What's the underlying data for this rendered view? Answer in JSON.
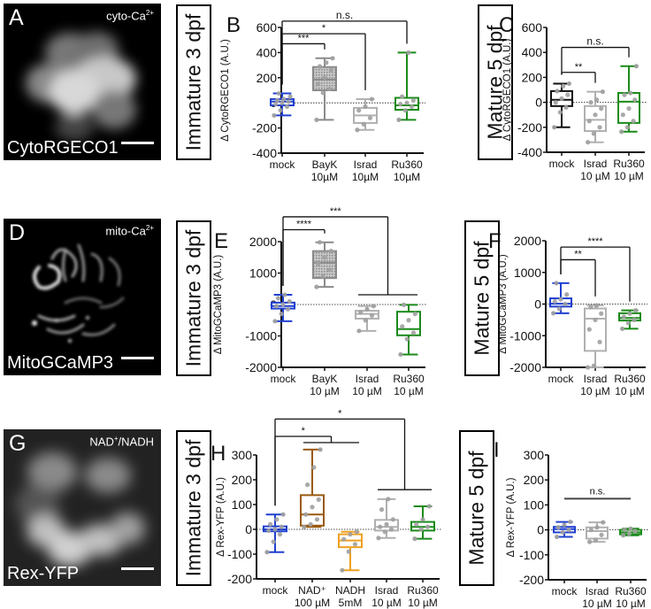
{
  "images": [
    {
      "letter": "A",
      "sub": "cyto-Ca2+",
      "name": "CytoRGECO1",
      "style": "blob"
    },
    {
      "letter": "D",
      "sub": "mito-Ca2+",
      "name": "MitoGCaMP3",
      "style": "mito"
    },
    {
      "letter": "G",
      "sub": "NAD+/NADH",
      "name": "Rex-YFP",
      "style": "blob2"
    }
  ],
  "stage_labels": {
    "immature": "Immature 3 dpf",
    "mature": "Mature 5 dpf"
  },
  "colors": {
    "mock": "#2040d0",
    "bayk": "#8a8a8a",
    "israd": "#b0b0b0",
    "ru360": "#1a8a1a",
    "nad": "#9a5a10",
    "nadh": "#f0a020",
    "mature_mock_C": "#111111",
    "points": "#a0a0a0"
  },
  "chart_data": [
    {
      "panel": "B",
      "type": "box",
      "ylabel": "Δ CytoRGECO1 (A.U.)",
      "ylim": [
        -400,
        600
      ],
      "yticks": [
        -400,
        -200,
        0,
        200,
        400,
        600
      ],
      "categories": [
        [
          "mock"
        ],
        [
          "BayK",
          "10µM"
        ],
        [
          "Israd",
          "10µM"
        ],
        [
          "Ru360",
          "10µM"
        ]
      ],
      "boxes": [
        {
          "color": "mock",
          "min": -100,
          "q1": -20,
          "median": 10,
          "q3": 30,
          "max": 75,
          "hatch": false
        },
        {
          "color": "bayk",
          "min": -135,
          "q1": 100,
          "median": 185,
          "q3": 285,
          "max": 355,
          "hatch": true
        },
        {
          "color": "israd",
          "min": -215,
          "q1": -160,
          "median": -100,
          "q3": -40,
          "max": 30,
          "hatch": false
        },
        {
          "color": "ru360",
          "min": -135,
          "q1": -55,
          "median": -20,
          "q3": 40,
          "max": 400,
          "hatch": false
        }
      ],
      "points": [
        [
          -100,
          -60,
          -30,
          -10,
          0,
          10,
          20,
          30,
          50,
          75
        ],
        [
          -135,
          80,
          110,
          150,
          200,
          260,
          290,
          320,
          355
        ],
        [
          -215,
          -170,
          -120,
          -60,
          -30,
          30
        ],
        [
          -135,
          -60,
          -30,
          -10,
          0,
          20,
          50,
          400
        ]
      ],
      "brackets": [
        {
          "from": 0,
          "to": 1,
          "level": 470,
          "label": "***"
        },
        {
          "from": 0,
          "to": 2,
          "level": 550,
          "label": "*"
        },
        {
          "from": 0,
          "to": 3,
          "level": 650,
          "label": "n.s."
        }
      ]
    },
    {
      "panel": "C",
      "type": "box",
      "ylabel": "Δ CytoRGECO1 (A.U.)",
      "ylim": [
        -400,
        600
      ],
      "yticks": [
        -400,
        -200,
        0,
        200,
        400,
        600
      ],
      "categories": [
        [
          "mock"
        ],
        [
          "Israd",
          "10 µM"
        ],
        [
          "Ru360",
          "10 µM"
        ]
      ],
      "boxes": [
        {
          "color": "mature_mock_C",
          "min": -200,
          "q1": -30,
          "median": 20,
          "q3": 90,
          "max": 150,
          "hatch": false
        },
        {
          "color": "israd",
          "min": -320,
          "q1": -230,
          "median": -140,
          "q3": -30,
          "max": 85,
          "hatch": false
        },
        {
          "color": "ru360",
          "min": -235,
          "q1": -165,
          "median": 5,
          "q3": 75,
          "max": 290,
          "hatch": false
        }
      ],
      "points": [
        [
          -200,
          -80,
          -40,
          0,
          30,
          60,
          90,
          130,
          150
        ],
        [
          -320,
          -250,
          -200,
          -150,
          -100,
          -50,
          0,
          20,
          85
        ],
        [
          -235,
          -200,
          -150,
          -100,
          -50,
          20,
          60,
          75,
          290
        ]
      ],
      "brackets": [
        {
          "from": 0,
          "to": 1,
          "level": 240,
          "label": "**"
        },
        {
          "from": 0,
          "to": 2,
          "level": 440,
          "label": "n.s."
        }
      ]
    },
    {
      "panel": "E",
      "type": "box",
      "ylabel": "Δ MitoGCaMP3 (A.U.)",
      "ylim": [
        -2000,
        2000
      ],
      "yticks": [
        -2000,
        -1000,
        0,
        1000,
        2000
      ],
      "categories": [
        [
          "mock"
        ],
        [
          "BayK",
          "10 µM"
        ],
        [
          "Israd",
          "10 µM"
        ],
        [
          "Ru360",
          "10 µM"
        ]
      ],
      "boxes": [
        {
          "color": "mock",
          "min": -530,
          "q1": -130,
          "median": -50,
          "q3": 60,
          "max": 310,
          "hatch": false
        },
        {
          "color": "bayk",
          "min": 560,
          "q1": 840,
          "median": 1330,
          "q3": 1700,
          "max": 1980,
          "hatch": true
        },
        {
          "color": "israd",
          "min": -840,
          "q1": -450,
          "median": -300,
          "q3": -200,
          "max": -50,
          "hatch": false
        },
        {
          "color": "ru360",
          "min": -1590,
          "q1": -980,
          "median": -780,
          "q3": -230,
          "max": -10,
          "hatch": false
        }
      ],
      "points": [
        [
          -530,
          -300,
          -150,
          -50,
          0,
          100,
          200,
          310
        ],
        [
          560,
          900,
          1100,
          1300,
          1500,
          1700,
          1980
        ],
        [
          -840,
          -500,
          -350,
          -250,
          -150,
          -50
        ],
        [
          -1590,
          -1100,
          -900,
          -700,
          -500,
          -300,
          -10
        ]
      ],
      "brackets": [
        {
          "from": 0,
          "to": 1,
          "level": 2380,
          "label": "****",
          "ends": [
            false,
            false
          ]
        },
        {
          "from": 0,
          "to": 3,
          "level": 2790,
          "label": "***",
          "groupTo": [
            2,
            3
          ],
          "groupLevel": 310
        }
      ]
    },
    {
      "panel": "F",
      "type": "box",
      "ylabel": "Δ MitoGCaMP3 (A.U.)",
      "ylim": [
        -2000,
        2000
      ],
      "yticks": [
        -2000,
        -1000,
        0,
        1000,
        2000
      ],
      "categories": [
        [
          "mock"
        ],
        [
          "Israd",
          "10 µM"
        ],
        [
          "Ru360",
          "10 µM"
        ]
      ],
      "boxes": [
        {
          "color": "mock",
          "min": -290,
          "q1": -80,
          "median": 10,
          "q3": 180,
          "max": 660,
          "hatch": false
        },
        {
          "color": "israd",
          "min": -2000,
          "q1": -1480,
          "median": -460,
          "q3": -140,
          "max": -40,
          "hatch": false
        },
        {
          "color": "ru360",
          "min": -780,
          "q1": -520,
          "median": -440,
          "q3": -290,
          "max": -200,
          "hatch": false
        }
      ],
      "points": [
        [
          -290,
          -150,
          0,
          80,
          150,
          300,
          660
        ],
        [
          -2000,
          -1950,
          -1200,
          -800,
          -500,
          -300,
          -100,
          -40
        ],
        [
          -780,
          -600,
          -500,
          -400,
          -300,
          -200
        ]
      ],
      "brackets": [
        {
          "from": 0,
          "to": 1,
          "level": 1400,
          "label": "**"
        },
        {
          "from": 0,
          "to": 2,
          "level": 1800,
          "label": "****"
        }
      ]
    },
    {
      "panel": "H",
      "type": "box",
      "ylabel": "Δ Rex-YFP (A.U.)",
      "ylim": [
        -200,
        300
      ],
      "yticks": [
        -200,
        -100,
        0,
        100,
        200,
        300
      ],
      "categories": [
        [
          "mock"
        ],
        [
          "NAD⁺",
          "100 µM"
        ],
        [
          "NADH",
          "5mM"
        ],
        [
          "Israd",
          "10 µM"
        ],
        [
          "Ru360",
          "10 µM"
        ]
      ],
      "boxes": [
        {
          "color": "mock",
          "min": -92,
          "q1": -8,
          "median": 0,
          "q3": 12,
          "max": 60,
          "hatch": false
        },
        {
          "color": "nad",
          "min": 10,
          "q1": 15,
          "median": 60,
          "q3": 138,
          "max": 322,
          "hatch": false
        },
        {
          "color": "nadh",
          "min": -165,
          "q1": -72,
          "median": -45,
          "q3": -20,
          "max": -10,
          "hatch": false
        },
        {
          "color": "israd",
          "min": -35,
          "q1": -5,
          "median": 10,
          "q3": 38,
          "max": 122,
          "hatch": false
        },
        {
          "color": "ru360",
          "min": -38,
          "q1": -5,
          "median": 10,
          "q3": 30,
          "max": 93,
          "hatch": false
        }
      ],
      "points": [
        [
          -92,
          -50,
          -20,
          -5,
          0,
          10,
          20,
          40,
          60
        ],
        [
          10,
          20,
          40,
          60,
          90,
          120,
          180,
          250,
          322
        ],
        [
          -165,
          -90,
          -60,
          -40,
          -20,
          -10
        ],
        [
          -35,
          -10,
          0,
          10,
          20,
          40,
          80,
          122
        ],
        [
          -38,
          0,
          10,
          20,
          40,
          93
        ]
      ],
      "brackets": [
        {
          "from": 0,
          "to": 1,
          "level": 375,
          "label": "*",
          "groupTo": [
            1,
            2
          ],
          "groupLevel": 350
        },
        {
          "from": 0,
          "to": 3,
          "level": 445,
          "label": "*",
          "groupTo": [
            3,
            4
          ],
          "groupLevel": 160
        }
      ]
    },
    {
      "panel": "I",
      "type": "box",
      "ylabel": "Δ Rex-YFP (A.U.)",
      "ylim": [
        -200,
        300
      ],
      "yticks": [
        -200,
        -100,
        0,
        100,
        200,
        300
      ],
      "categories": [
        [
          "mock"
        ],
        [
          "Israd",
          "10 µM"
        ],
        [
          "Ru360",
          "10 µM"
        ]
      ],
      "boxes": [
        {
          "color": "mock",
          "min": -28,
          "q1": -10,
          "median": 3,
          "q3": 12,
          "max": 32,
          "hatch": false
        },
        {
          "color": "israd",
          "min": -48,
          "q1": -35,
          "median": -5,
          "q3": 10,
          "max": 30,
          "hatch": false
        },
        {
          "color": "ru360",
          "min": -22,
          "q1": -18,
          "median": -10,
          "q3": 0,
          "max": 5,
          "hatch": false
        }
      ],
      "points": [
        [
          -28,
          -10,
          0,
          10,
          20,
          32
        ],
        [
          -48,
          -40,
          -20,
          0,
          10,
          30
        ],
        [
          -22,
          -15,
          -5,
          0,
          5
        ]
      ],
      "brackets": [
        {
          "from": 0,
          "to": 2,
          "level": 125,
          "label": "n.s.",
          "flat": true
        }
      ]
    }
  ]
}
